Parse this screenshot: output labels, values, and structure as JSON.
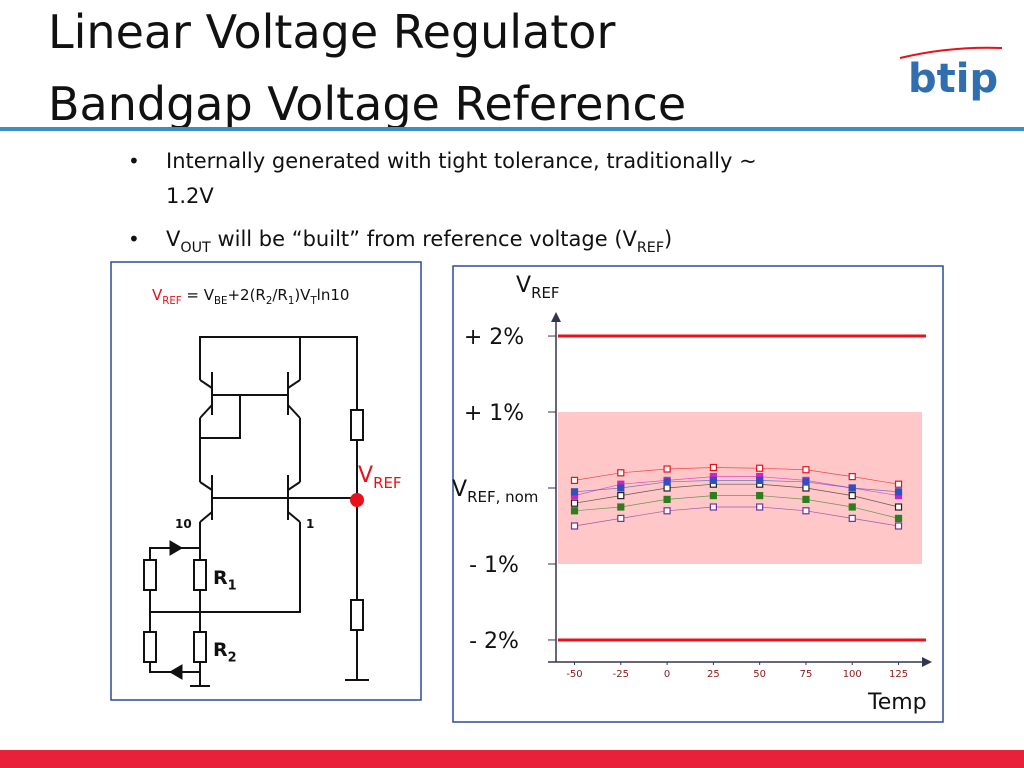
{
  "header": {
    "title_lines": [
      "Linear Voltage Regulator",
      "Bandgap Voltage Reference"
    ],
    "logo": "btip"
  },
  "bullets": [
    {
      "lines": [
        "Internally generated with tight tolerance, traditionally ~",
        "1.2V"
      ]
    },
    {
      "segments": [
        {
          "text": "V"
        },
        {
          "text": "OUT",
          "sub": true
        },
        {
          "text": " will be “built” from reference voltage (V"
        },
        {
          "text": "REF",
          "sub": true
        },
        {
          "text": ")"
        }
      ]
    }
  ],
  "circuit": {
    "formula": [
      {
        "text": "V",
        "color": "#e8101a"
      },
      {
        "text": "REF",
        "sub": true,
        "color": "#e8101a"
      },
      {
        "text": " = V"
      },
      {
        "text": "BE",
        "sub": true
      },
      {
        "text": "+2(R"
      },
      {
        "text": "2",
        "sub": true
      },
      {
        "text": "/R"
      },
      {
        "text": "1",
        "sub": true
      },
      {
        "text": ")V"
      },
      {
        "text": "T",
        "sub": true
      },
      {
        "text": "ln10"
      }
    ],
    "transistor_ratio_left": "10",
    "transistor_ratio_right": "1",
    "r1": [
      {
        "text": "R"
      },
      {
        "text": "1",
        "sub": true
      }
    ],
    "r2": [
      {
        "text": "R"
      },
      {
        "text": "2",
        "sub": true
      }
    ],
    "vref": [
      {
        "text": "V",
        "color": "#e8101a"
      },
      {
        "text": "REF",
        "sub": true,
        "color": "#e8101a"
      }
    ]
  },
  "chart_data": {
    "type": "scatter",
    "ylabel": [
      {
        "text": "V"
      },
      {
        "text": "REF",
        "sub": true
      }
    ],
    "xlabel": "Temp",
    "x": [
      -50,
      -25,
      0,
      25,
      50,
      75,
      100,
      125
    ],
    "xlim": [
      -60,
      142
    ],
    "xticks": [
      -50,
      -25,
      0,
      25,
      50,
      75,
      100,
      125
    ],
    "ylim": [
      -2.29,
      2.29
    ],
    "yticks": [
      {
        "value": 2,
        "label": "+ 2%"
      },
      {
        "value": 1,
        "label": "+ 1%"
      },
      {
        "value": 0,
        "label": "V",
        "label_sub": "REF, nom"
      },
      {
        "value": -1,
        "label": "- 1%"
      },
      {
        "value": -2,
        "label": "- 2%"
      }
    ],
    "limit_lines": [
      2,
      -2
    ],
    "limit_color": "#e8101a",
    "band": [
      -1,
      1
    ],
    "band_color": "#ffc7c7",
    "series": [
      {
        "color": "#e8101a",
        "values": [
          0.1,
          0.2,
          0.25,
          0.27,
          0.26,
          0.24,
          0.15,
          0.05
        ]
      },
      {
        "color": "#d020c8",
        "values": [
          -0.1,
          0.05,
          0.1,
          0.15,
          0.15,
          0.1,
          0.0,
          -0.1
        ]
      },
      {
        "color": "#222222",
        "values": [
          -0.2,
          -0.1,
          0.0,
          0.05,
          0.05,
          0.0,
          -0.1,
          -0.25
        ]
      },
      {
        "color": "#2e7d1e",
        "values": [
          -0.3,
          -0.25,
          -0.15,
          -0.1,
          -0.1,
          -0.15,
          -0.25,
          -0.4
        ]
      },
      {
        "color": "#7030a0",
        "values": [
          -0.5,
          -0.4,
          -0.3,
          -0.25,
          -0.25,
          -0.3,
          -0.4,
          -0.5
        ]
      },
      {
        "color": "#3050c0",
        "values": [
          -0.05,
          0.0,
          0.08,
          0.1,
          0.1,
          0.08,
          0.0,
          -0.05
        ]
      }
    ]
  }
}
